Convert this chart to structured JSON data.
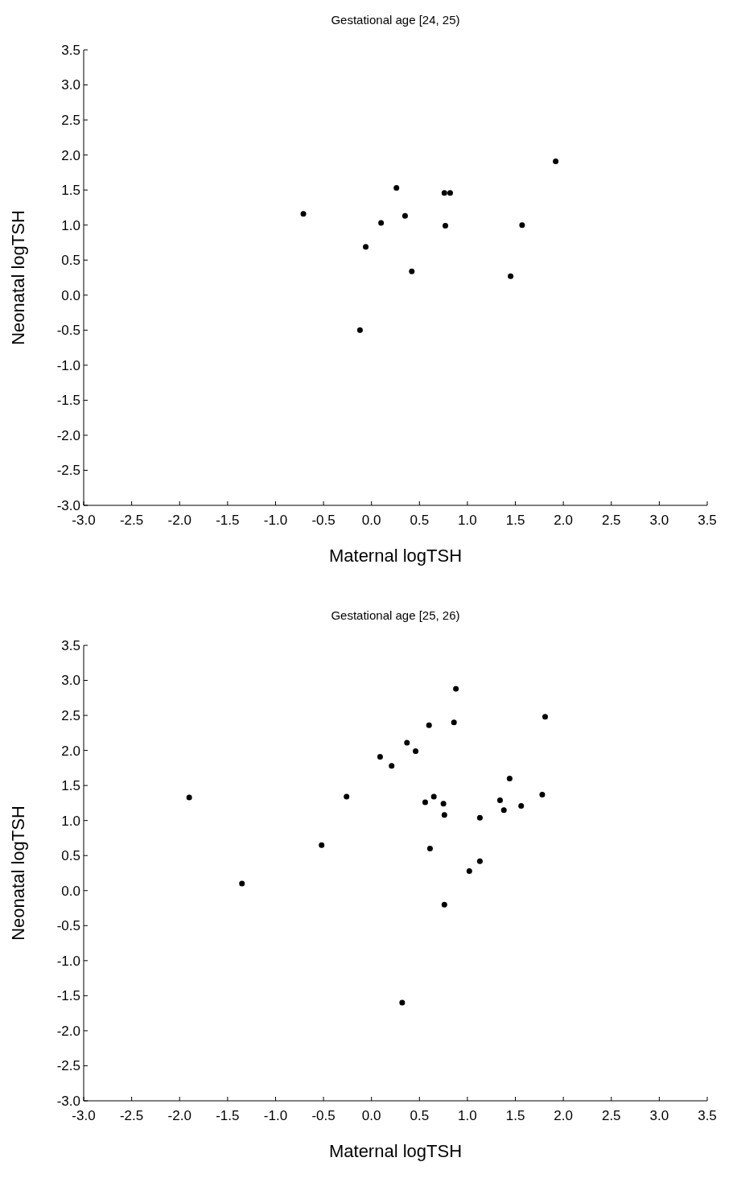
{
  "chart_data": [
    {
      "type": "scatter",
      "title": "Gestational age [24, 25)",
      "xlabel": "Maternal logTSH",
      "ylabel": "Neonatal logTSH",
      "marker": "circle",
      "grid": false,
      "xlim": [
        -3.0,
        3.5
      ],
      "ylim": [
        -3.0,
        3.5
      ],
      "xticks": [
        {
          "value": -3,
          "label": "-3.0"
        },
        {
          "value": -2.5,
          "label": "-2.5"
        },
        {
          "value": -2,
          "label": "-2.0"
        },
        {
          "value": -1.5,
          "label": "-1.5"
        },
        {
          "value": -1,
          "label": "-1.0"
        },
        {
          "value": -0.5,
          "label": "-0.5"
        },
        {
          "value": 0,
          "label": "0.0"
        },
        {
          "value": 0.5,
          "label": "0.5"
        },
        {
          "value": 1,
          "label": "1.0"
        },
        {
          "value": 1.5,
          "label": "1.5"
        },
        {
          "value": 2,
          "label": "2.0"
        },
        {
          "value": 2.5,
          "label": "2.5"
        },
        {
          "value": 3,
          "label": "3.0"
        },
        {
          "value": 3.5,
          "label": "3.5"
        }
      ],
      "yticks": [
        {
          "value": -3,
          "label": "-3.0"
        },
        {
          "value": -2.5,
          "label": "-2.5"
        },
        {
          "value": -2,
          "label": "-2.0"
        },
        {
          "value": -1.5,
          "label": "-1.5"
        },
        {
          "value": -1,
          "label": "-1.0"
        },
        {
          "value": -0.5,
          "label": "-0.5"
        },
        {
          "value": 0,
          "label": "0.0"
        },
        {
          "value": 0.5,
          "label": "0.5"
        },
        {
          "value": 1,
          "label": "1.0"
        },
        {
          "value": 1.5,
          "label": "1.5"
        },
        {
          "value": 2,
          "label": "2.0"
        },
        {
          "value": 2.5,
          "label": "2.5"
        },
        {
          "value": 3,
          "label": "3.0"
        },
        {
          "value": 3.5,
          "label": "3.5"
        }
      ],
      "series": [
        {
          "color": "#000000",
          "x": [
            -0.71,
            -0.06,
            -0.12,
            0.1,
            0.26,
            0.35,
            0.42,
            0.76,
            0.82,
            0.77,
            1.45,
            1.57,
            1.92
          ],
          "values": [
            1.16,
            0.69,
            -0.5,
            1.03,
            1.53,
            1.13,
            0.34,
            1.46,
            1.46,
            0.99,
            0.27,
            1.0,
            1.91
          ]
        }
      ]
    },
    {
      "type": "scatter",
      "title": "Gestational age [25, 26)",
      "xlabel": "Maternal logTSH",
      "ylabel": "Neonatal logTSH",
      "marker": "circle",
      "grid": false,
      "xlim": [
        -3.0,
        3.5
      ],
      "ylim": [
        -3.0,
        3.5
      ],
      "xticks": [
        {
          "value": -3,
          "label": "-3.0"
        },
        {
          "value": -2.5,
          "label": "-2.5"
        },
        {
          "value": -2,
          "label": "-2.0"
        },
        {
          "value": -1.5,
          "label": "-1.5"
        },
        {
          "value": -1,
          "label": "-1.0"
        },
        {
          "value": -0.5,
          "label": "-0.5"
        },
        {
          "value": 0,
          "label": "0.0"
        },
        {
          "value": 0.5,
          "label": "0.5"
        },
        {
          "value": 1,
          "label": "1.0"
        },
        {
          "value": 1.5,
          "label": "1.5"
        },
        {
          "value": 2,
          "label": "2.0"
        },
        {
          "value": 2.5,
          "label": "2.5"
        },
        {
          "value": 3,
          "label": "3.0"
        },
        {
          "value": 3.5,
          "label": "3.5"
        }
      ],
      "yticks": [
        {
          "value": -3,
          "label": "-3.0"
        },
        {
          "value": -2.5,
          "label": "-2.5"
        },
        {
          "value": -2,
          "label": "-2.0"
        },
        {
          "value": -1.5,
          "label": "-1.5"
        },
        {
          "value": -1,
          "label": "-1.0"
        },
        {
          "value": -0.5,
          "label": "-0.5"
        },
        {
          "value": 0,
          "label": "0.0"
        },
        {
          "value": 0.5,
          "label": "0.5"
        },
        {
          "value": 1,
          "label": "1.0"
        },
        {
          "value": 1.5,
          "label": "1.5"
        },
        {
          "value": 2,
          "label": "2.0"
        },
        {
          "value": 2.5,
          "label": "2.5"
        },
        {
          "value": 3,
          "label": "3.0"
        },
        {
          "value": 3.5,
          "label": "3.5"
        }
      ],
      "series": [
        {
          "color": "#000000",
          "x": [
            -1.9,
            -1.35,
            -0.52,
            -0.26,
            0.09,
            0.21,
            0.37,
            0.46,
            0.32,
            0.56,
            0.6,
            0.61,
            0.65,
            0.75,
            0.76,
            0.76,
            0.86,
            0.88,
            1.02,
            1.13,
            1.13,
            1.34,
            1.38,
            1.44,
            1.56,
            1.78,
            1.81
          ],
          "values": [
            1.33,
            0.1,
            0.65,
            1.34,
            1.91,
            1.78,
            2.11,
            1.99,
            -1.6,
            1.26,
            2.36,
            0.6,
            1.34,
            1.24,
            1.08,
            -0.2,
            2.4,
            2.88,
            0.28,
            1.04,
            0.42,
            1.29,
            1.15,
            1.6,
            1.21,
            1.37,
            2.48
          ]
        }
      ]
    }
  ]
}
